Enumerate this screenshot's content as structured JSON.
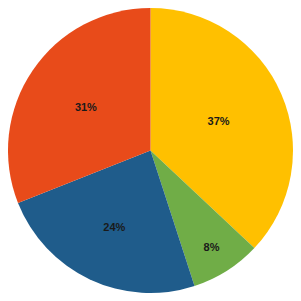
{
  "chart_data": {
    "type": "pie",
    "values": [
      37,
      8,
      24,
      31
    ],
    "value_labels": [
      "37%",
      "8%",
      "24%",
      "31%"
    ],
    "colors": [
      "#FFC000",
      "#70AD47",
      "#1F5C8B",
      "#E84B1A"
    ],
    "data_labels": true
  }
}
